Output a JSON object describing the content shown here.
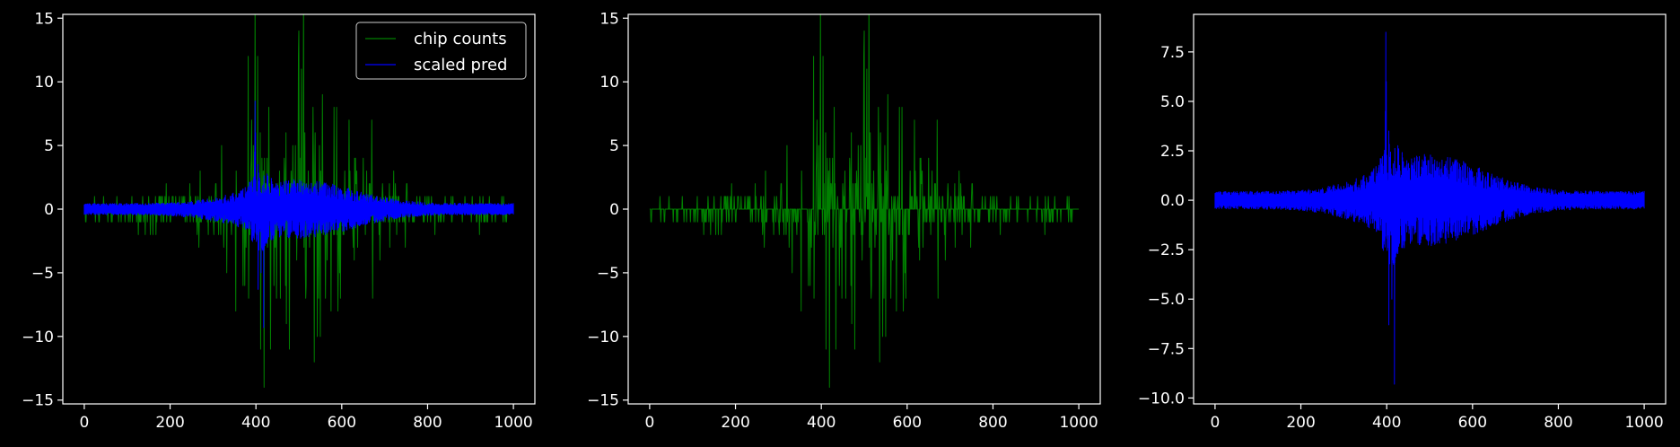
{
  "colors": {
    "background": "#000000",
    "axes": "#ffffff",
    "counts": "#008000",
    "pred": "#0000ff"
  },
  "chart_data": [
    {
      "type": "line",
      "title": "",
      "xlabel": "",
      "ylabel": "",
      "xlim": [
        -50,
        1050
      ],
      "ylim": [
        -15.3,
        15.3
      ],
      "xticks": [
        0,
        200,
        400,
        600,
        800,
        1000
      ],
      "yticks": [
        -15,
        -10,
        -5,
        0,
        5,
        10,
        15
      ],
      "legend": {
        "position": "top-right",
        "entries": [
          "chip counts",
          "scaled pred"
        ]
      },
      "series": [
        {
          "name": "chip counts",
          "color": "#008000",
          "kind": "counts"
        },
        {
          "name": "scaled pred",
          "color": "#0000ff",
          "kind": "pred"
        }
      ]
    },
    {
      "type": "line",
      "title": "",
      "xlabel": "",
      "ylabel": "",
      "xlim": [
        -50,
        1050
      ],
      "ylim": [
        -15.3,
        15.3
      ],
      "xticks": [
        0,
        200,
        400,
        600,
        800,
        1000
      ],
      "yticks": [
        -15,
        -10,
        -5,
        0,
        5,
        10,
        15
      ],
      "series": [
        {
          "color": "#008000",
          "kind": "counts"
        }
      ]
    },
    {
      "type": "line",
      "title": "",
      "xlabel": "",
      "ylabel": "",
      "xlim": [
        -50,
        1050
      ],
      "ylim": [
        -10.3,
        9.4
      ],
      "xticks": [
        0,
        200,
        400,
        600,
        800,
        1000
      ],
      "yticks": [
        -10.0,
        -7.5,
        -5.0,
        -2.5,
        0.0,
        2.5,
        5.0,
        7.5
      ],
      "ytick_labels": [
        "−10.0",
        "−7.5",
        "−5.0",
        "−2.5",
        "0.0",
        "2.5",
        "5.0",
        "7.5"
      ],
      "series": [
        {
          "color": "#0000ff",
          "kind": "pred"
        }
      ]
    }
  ]
}
